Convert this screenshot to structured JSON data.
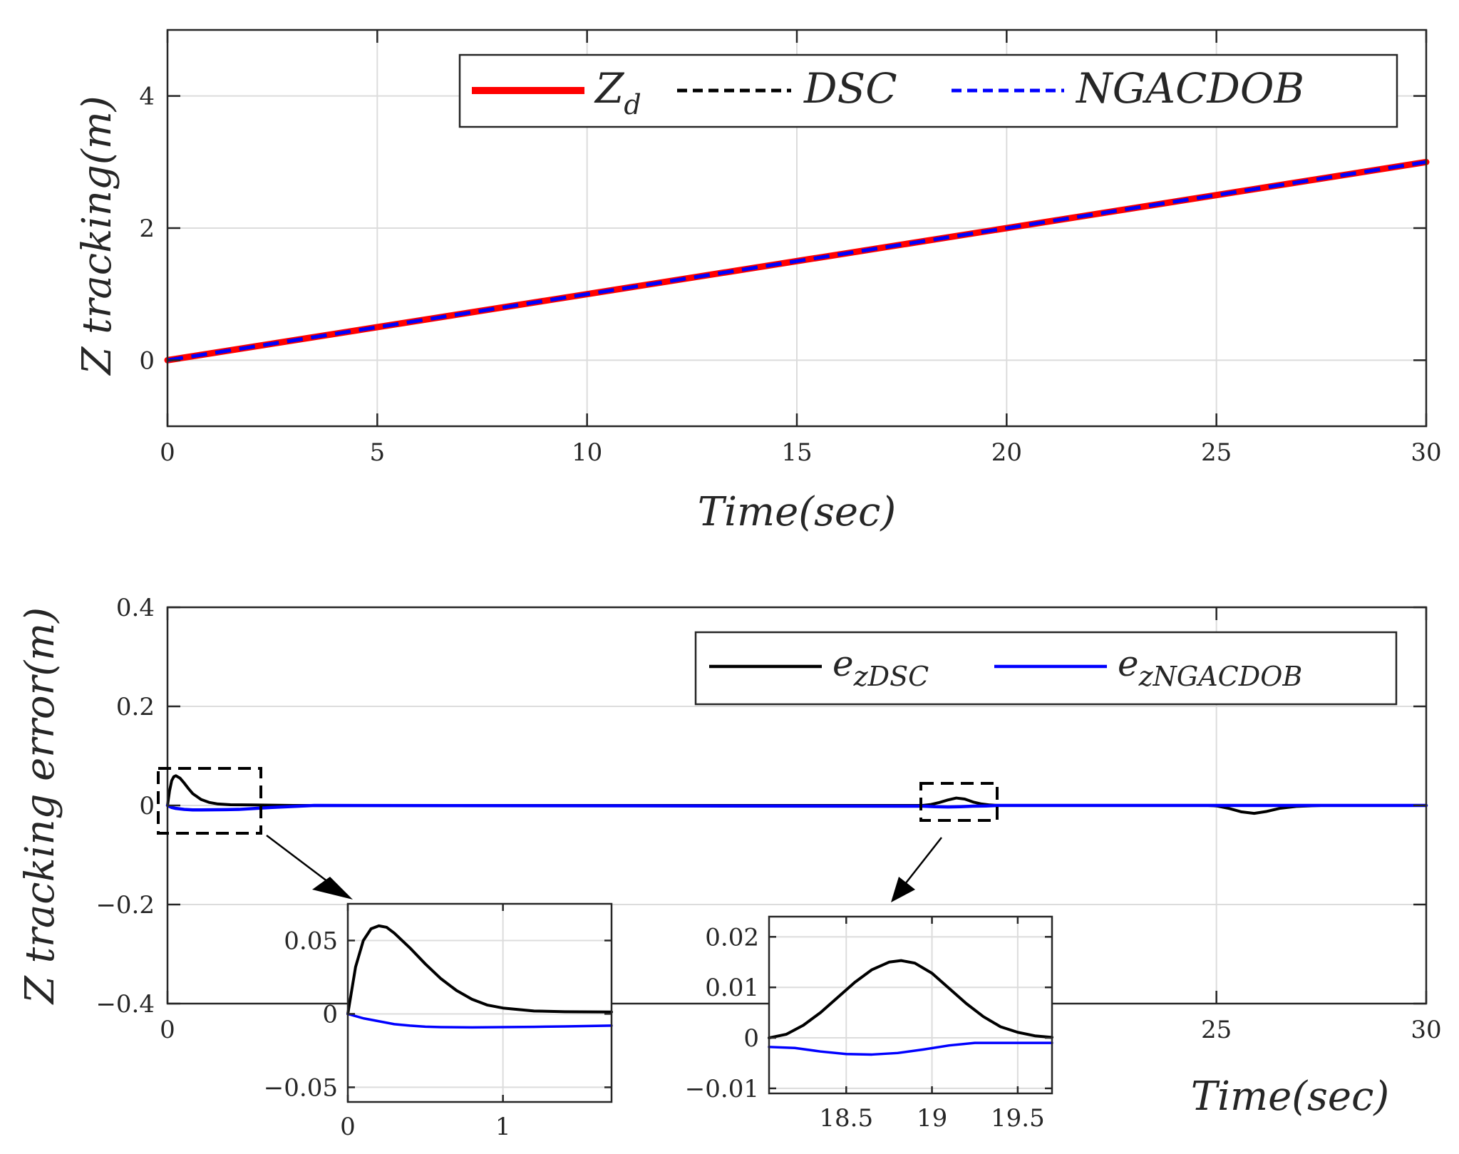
{
  "chart_data": [
    {
      "type": "line",
      "ylabel": "Z tracking(m)",
      "xlabel": "Time(sec)",
      "xlim": [
        0,
        30
      ],
      "ylim": [
        -1,
        5
      ],
      "xticks": [
        "0",
        "5",
        "10",
        "15",
        "20",
        "25",
        "30"
      ],
      "yticks": [
        "0",
        "2",
        "4"
      ],
      "grid": true,
      "legend_position": "top-right",
      "series": [
        {
          "name": "Z",
          "subscript": "d",
          "color": "#ff0000",
          "style": "solid",
          "x": [
            0,
            30
          ],
          "y": [
            0,
            3
          ]
        },
        {
          "name": "DSC",
          "color": "#000000",
          "style": "dashed",
          "x": [
            0,
            30
          ],
          "y": [
            0,
            3
          ]
        },
        {
          "name": "NGACDOB",
          "color": "#0000ff",
          "style": "dashed",
          "x": [
            0,
            30
          ],
          "y": [
            0,
            3
          ]
        }
      ]
    },
    {
      "type": "line",
      "ylabel": "Z tracking error(m)",
      "xlabel": "Time(sec)",
      "xlim": [
        0,
        30
      ],
      "ylim": [
        -0.4,
        0.4
      ],
      "xticks": [
        "0",
        "25",
        "30"
      ],
      "yticks": [
        "0.4",
        "0.2",
        "0",
        "−0.2",
        "−0.4"
      ],
      "grid": true,
      "legend_position": "top-right",
      "series": [
        {
          "name": "e",
          "subscript": "zDSC",
          "color": "#000000",
          "style": "solid",
          "x": [
            0,
            0.05,
            0.1,
            0.15,
            0.2,
            0.3,
            0.4,
            0.5,
            0.6,
            0.8,
            1.0,
            1.2,
            1.5,
            2.0,
            2.5,
            3.0,
            18.0,
            18.2,
            18.4,
            18.6,
            18.8,
            19.0,
            19.2,
            19.4,
            19.6,
            19.8,
            24.8,
            25.0,
            25.3,
            25.6,
            25.9,
            26.2,
            26.5,
            26.9,
            27.5,
            30
          ],
          "y": [
            0,
            0.03,
            0.05,
            0.058,
            0.06,
            0.055,
            0.045,
            0.034,
            0.024,
            0.012,
            0.006,
            0.003,
            0.0015,
            0.001,
            0.0005,
            0,
            0,
            0.002,
            0.006,
            0.011,
            0.015,
            0.013,
            0.007,
            0.003,
            0.001,
            0,
            0,
            -0.001,
            -0.006,
            -0.013,
            -0.016,
            -0.012,
            -0.006,
            -0.002,
            0,
            0
          ]
        },
        {
          "name": "e",
          "subscript": "zNGACDOB",
          "color": "#0000ff",
          "style": "solid",
          "x": [
            0,
            0.1,
            0.2,
            0.4,
            0.6,
            0.8,
            1.0,
            1.4,
            1.7,
            2.5,
            3.5,
            18.0,
            18.3,
            18.6,
            18.9,
            19.2,
            19.5,
            19.8,
            30
          ],
          "y": [
            0,
            -0.004,
            -0.006,
            -0.008,
            -0.009,
            -0.009,
            -0.0088,
            -0.0085,
            -0.008,
            -0.004,
            0,
            -0.0015,
            -0.0025,
            -0.003,
            -0.0025,
            -0.0015,
            -0.001,
            0,
            0
          ]
        }
      ]
    },
    {
      "type": "line",
      "inset": true,
      "xlim": [
        0,
        1.7
      ],
      "ylim": [
        -0.06,
        0.075
      ],
      "xticks": [
        "0",
        "1"
      ],
      "yticks": [
        "0.05",
        "0",
        "−0.05"
      ],
      "grid": true,
      "series": [
        {
          "name": "DSC",
          "color": "#000000",
          "x": [
            0,
            0.05,
            0.1,
            0.15,
            0.2,
            0.25,
            0.3,
            0.4,
            0.5,
            0.6,
            0.7,
            0.8,
            0.9,
            1.0,
            1.2,
            1.4,
            1.7
          ],
          "y": [
            0,
            0.032,
            0.05,
            0.058,
            0.06,
            0.059,
            0.055,
            0.045,
            0.034,
            0.024,
            0.016,
            0.01,
            0.006,
            0.004,
            0.002,
            0.0015,
            0.0013
          ]
        },
        {
          "name": "NGACDOB",
          "color": "#0000ff",
          "x": [
            0,
            0.1,
            0.2,
            0.3,
            0.4,
            0.5,
            0.6,
            0.8,
            1.0,
            1.2,
            1.4,
            1.7
          ],
          "y": [
            0,
            -0.003,
            -0.005,
            -0.007,
            -0.008,
            -0.0087,
            -0.009,
            -0.0092,
            -0.009,
            -0.0088,
            -0.0085,
            -0.008
          ]
        }
      ]
    },
    {
      "type": "line",
      "inset": true,
      "xlim": [
        18.05,
        19.7
      ],
      "ylim": [
        -0.011,
        0.024
      ],
      "xticks": [
        "18.5",
        "19",
        "19.5"
      ],
      "yticks": [
        "0.02",
        "0.01",
        "0",
        "−0.01"
      ],
      "grid": true,
      "series": [
        {
          "name": "DSC",
          "color": "#000000",
          "x": [
            18.05,
            18.15,
            18.25,
            18.35,
            18.45,
            18.55,
            18.65,
            18.75,
            18.82,
            18.9,
            19.0,
            19.1,
            19.2,
            19.3,
            19.4,
            19.5,
            19.6,
            19.7
          ],
          "y": [
            0,
            0.0007,
            0.0025,
            0.005,
            0.008,
            0.011,
            0.0135,
            0.015,
            0.0153,
            0.0148,
            0.0128,
            0.0098,
            0.0068,
            0.0042,
            0.0022,
            0.0011,
            0.0004,
            0.0001
          ]
        },
        {
          "name": "NGACDOB",
          "color": "#0000ff",
          "x": [
            18.05,
            18.2,
            18.35,
            18.5,
            18.65,
            18.8,
            18.95,
            19.1,
            19.25,
            19.4,
            19.55,
            19.7
          ],
          "y": [
            -0.0018,
            -0.002,
            -0.0027,
            -0.0032,
            -0.0033,
            -0.003,
            -0.0023,
            -0.0015,
            -0.001,
            -0.001,
            -0.001,
            -0.001
          ]
        }
      ]
    }
  ]
}
